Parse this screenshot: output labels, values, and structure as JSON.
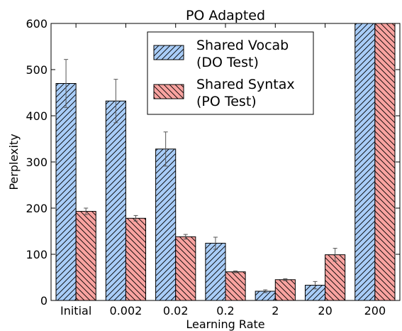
{
  "chart_data": {
    "type": "bar",
    "title": "PO Adapted",
    "xlabel": "Learning Rate",
    "ylabel": "Perplexity",
    "categories": [
      "Initial",
      "0.002",
      "0.02",
      "0.2",
      "2",
      "20",
      "200"
    ],
    "ylim": [
      0,
      600
    ],
    "yticks": [
      0,
      100,
      200,
      300,
      400,
      500,
      600
    ],
    "grid": false,
    "legend_position": "top-center",
    "series": [
      {
        "name_lines": [
          "Shared Vocab",
          "(DO Test)"
        ],
        "values": [
          470,
          432,
          328,
          124,
          20,
          33,
          600
        ],
        "errors": [
          52,
          47,
          37,
          13,
          3,
          8,
          0
        ],
        "color": "#a9cdf8",
        "hatch": "forward-diagonal"
      },
      {
        "name_lines": [
          "Shared Syntax",
          "(PO Test)"
        ],
        "values": [
          193,
          178,
          138,
          62,
          45,
          99,
          600
        ],
        "errors": [
          7,
          6,
          5,
          2,
          2,
          14,
          0
        ],
        "color": "#f9a3a0",
        "hatch": "back-diagonal"
      }
    ]
  }
}
